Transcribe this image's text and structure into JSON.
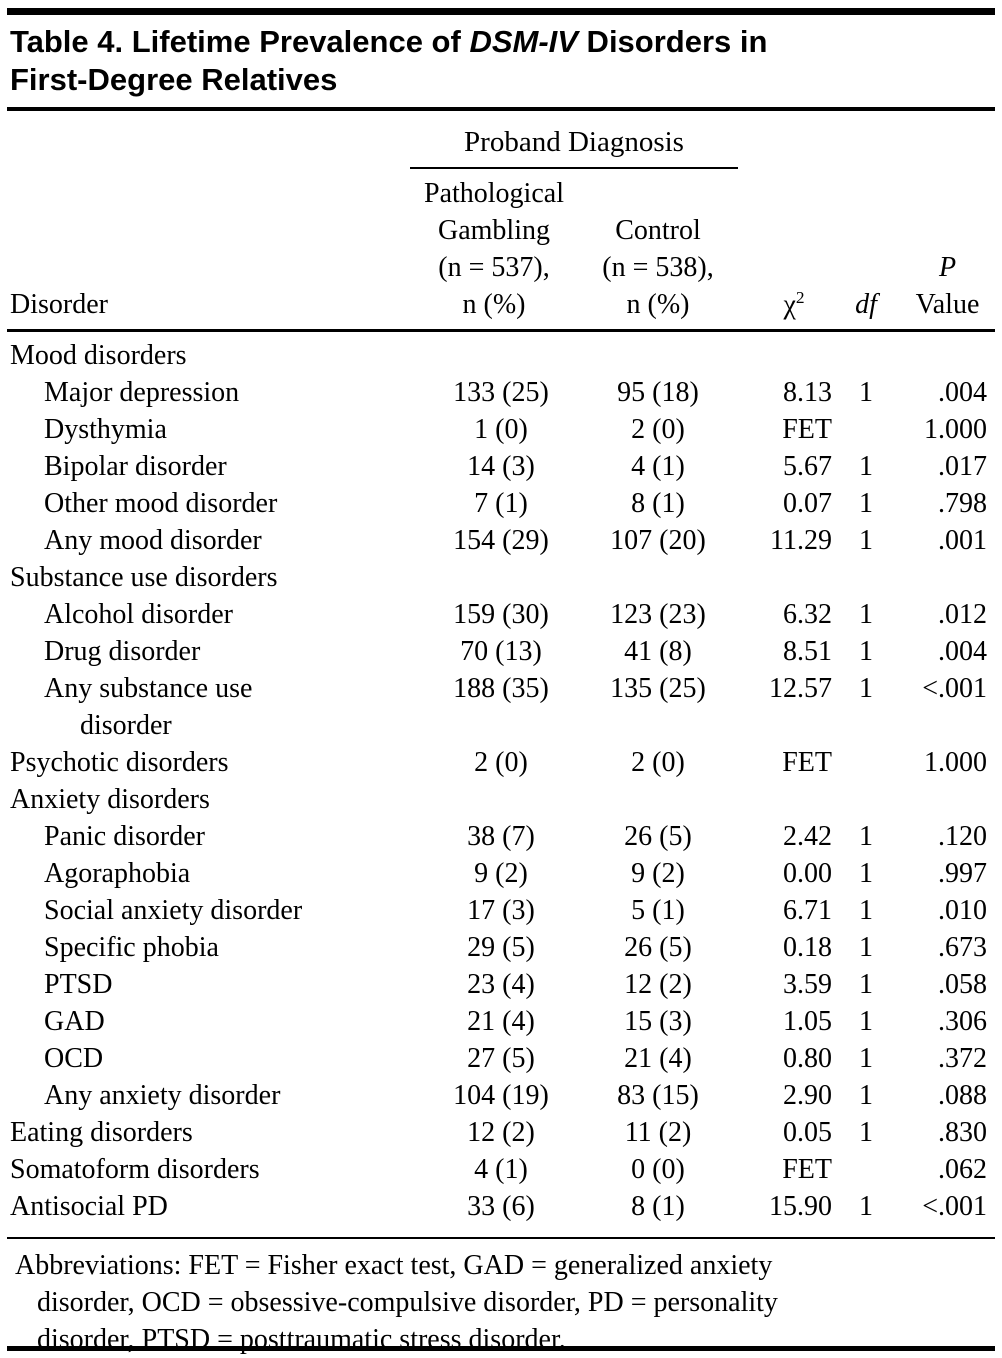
{
  "title": {
    "line1_pre": "Table 4. Lifetime Prevalence of ",
    "line1_italic": "DSM-IV",
    "line1_post": " Disorders in",
    "line2": "First-Degree Relatives"
  },
  "table": {
    "spanner": "Proband Diagnosis",
    "columns": {
      "disorder": "Disorder",
      "gambling_lines": [
        "Pathological",
        "Gambling",
        "(n = 537),",
        "n (%)"
      ],
      "control_lines": [
        "Control",
        "(n = 538),",
        "n (%)"
      ],
      "chi_base": "χ",
      "chi_sup": "2",
      "df": "df",
      "p_line1": "P",
      "p_line2": "Value"
    },
    "rows": [
      {
        "label": "Mood disorders",
        "indent": 0,
        "pg": "",
        "control": "",
        "chi": "",
        "df": "",
        "p": ""
      },
      {
        "label": "Major depression",
        "indent": 1,
        "pg": "133 (25)",
        "control": "95 (18)",
        "chi": "8.13",
        "df": "1",
        "p": ".004"
      },
      {
        "label": "Dysthymia",
        "indent": 1,
        "pg": "1 (0)",
        "control": "2 (0)",
        "chi": "FET",
        "df": "",
        "p": "1.000"
      },
      {
        "label": "Bipolar disorder",
        "indent": 1,
        "pg": "14 (3)",
        "control": "4 (1)",
        "chi": "5.67",
        "df": "1",
        "p": ".017"
      },
      {
        "label": "Other mood disorder",
        "indent": 1,
        "pg": "7 (1)",
        "control": "8 (1)",
        "chi": "0.07",
        "df": "1",
        "p": ".798"
      },
      {
        "label": "Any mood disorder",
        "indent": 1,
        "pg": "154 (29)",
        "control": "107 (20)",
        "chi": "11.29",
        "df": "1",
        "p": ".001"
      },
      {
        "label": "Substance use disorders",
        "indent": 0,
        "pg": "",
        "control": "",
        "chi": "",
        "df": "",
        "p": ""
      },
      {
        "label": "Alcohol disorder",
        "indent": 1,
        "pg": "159 (30)",
        "control": "123 (23)",
        "chi": "6.32",
        "df": "1",
        "p": ".012"
      },
      {
        "label": "Drug disorder",
        "indent": 1,
        "pg": "70 (13)",
        "control": "41 (8)",
        "chi": "8.51",
        "df": "1",
        "p": ".004"
      },
      {
        "label": "Any substance use",
        "label2": "disorder",
        "indent": 1,
        "pg": "188 (35)",
        "control": "135 (25)",
        "chi": "12.57",
        "df": "1",
        "p": "<.001"
      },
      {
        "label": "Psychotic disorders",
        "indent": 0,
        "pg": "2 (0)",
        "control": "2 (0)",
        "chi": "FET",
        "df": "",
        "p": "1.000"
      },
      {
        "label": "Anxiety disorders",
        "indent": 0,
        "pg": "",
        "control": "",
        "chi": "",
        "df": "",
        "p": ""
      },
      {
        "label": "Panic disorder",
        "indent": 1,
        "pg": "38 (7)",
        "control": "26 (5)",
        "chi": "2.42",
        "df": "1",
        "p": ".120"
      },
      {
        "label": "Agoraphobia",
        "indent": 1,
        "pg": "9 (2)",
        "control": "9 (2)",
        "chi": "0.00",
        "df": "1",
        "p": ".997"
      },
      {
        "label": "Social anxiety disorder",
        "indent": 1,
        "pg": "17 (3)",
        "control": "5 (1)",
        "chi": "6.71",
        "df": "1",
        "p": ".010"
      },
      {
        "label": "Specific phobia",
        "indent": 1,
        "pg": "29 (5)",
        "control": "26 (5)",
        "chi": "0.18",
        "df": "1",
        "p": ".673"
      },
      {
        "label": "PTSD",
        "indent": 1,
        "pg": "23 (4)",
        "control": "12 (2)",
        "chi": "3.59",
        "df": "1",
        "p": ".058"
      },
      {
        "label": "GAD",
        "indent": 1,
        "pg": "21 (4)",
        "control": "15 (3)",
        "chi": "1.05",
        "df": "1",
        "p": ".306"
      },
      {
        "label": "OCD",
        "indent": 1,
        "pg": "27 (5)",
        "control": "21 (4)",
        "chi": "0.80",
        "df": "1",
        "p": ".372"
      },
      {
        "label": "Any anxiety disorder",
        "indent": 1,
        "pg": "104 (19)",
        "control": "83 (15)",
        "chi": "2.90",
        "df": "1",
        "p": ".088"
      },
      {
        "label": "Eating disorders",
        "indent": 0,
        "pg": "12 (2)",
        "control": "11 (2)",
        "chi": "0.05",
        "df": "1",
        "p": ".830"
      },
      {
        "label": "Somatoform disorders",
        "indent": 0,
        "pg": "4 (1)",
        "control": "0 (0)",
        "chi": "FET",
        "df": "",
        "p": ".062"
      },
      {
        "label": "Antisocial PD",
        "indent": 0,
        "pg": "33 (6)",
        "control": "8 (1)",
        "chi": "15.90",
        "df": "1",
        "p": "<.001"
      }
    ]
  },
  "footnote": {
    "lines": [
      "Abbreviations: FET = Fisher exact test, GAD = generalized anxiety",
      "disorder, OCD = obsessive-compulsive disorder, PD = personality",
      "disorder, PTSD = posttraumatic stress disorder."
    ]
  },
  "colors": {
    "text": "#000000",
    "background": "#ffffff",
    "rule": "#000000"
  }
}
